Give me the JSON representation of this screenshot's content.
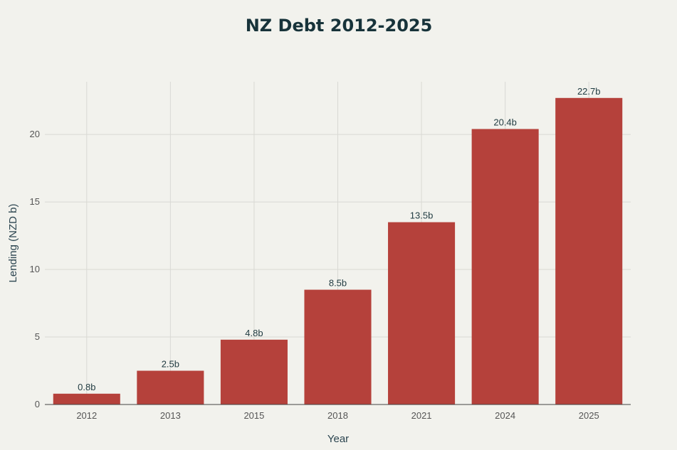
{
  "chart_data": {
    "type": "bar",
    "title": "NZ Debt 2012-2025",
    "xlabel": "Year",
    "ylabel": "Lending (NZD b)",
    "categories": [
      "2012",
      "2013",
      "2015",
      "2018",
      "2021",
      "2024",
      "2025"
    ],
    "values": [
      0.8,
      2.5,
      4.8,
      8.5,
      13.5,
      20.4,
      22.7
    ],
    "data_labels": [
      "0.8b",
      "2.5b",
      "4.8b",
      "8.5b",
      "13.5b",
      "20.4b",
      "22.7b"
    ],
    "yticks": [
      0,
      5,
      10,
      15,
      20
    ],
    "ylim": [
      0,
      23.9
    ],
    "grid": true,
    "bar_color": "#b5413b"
  }
}
